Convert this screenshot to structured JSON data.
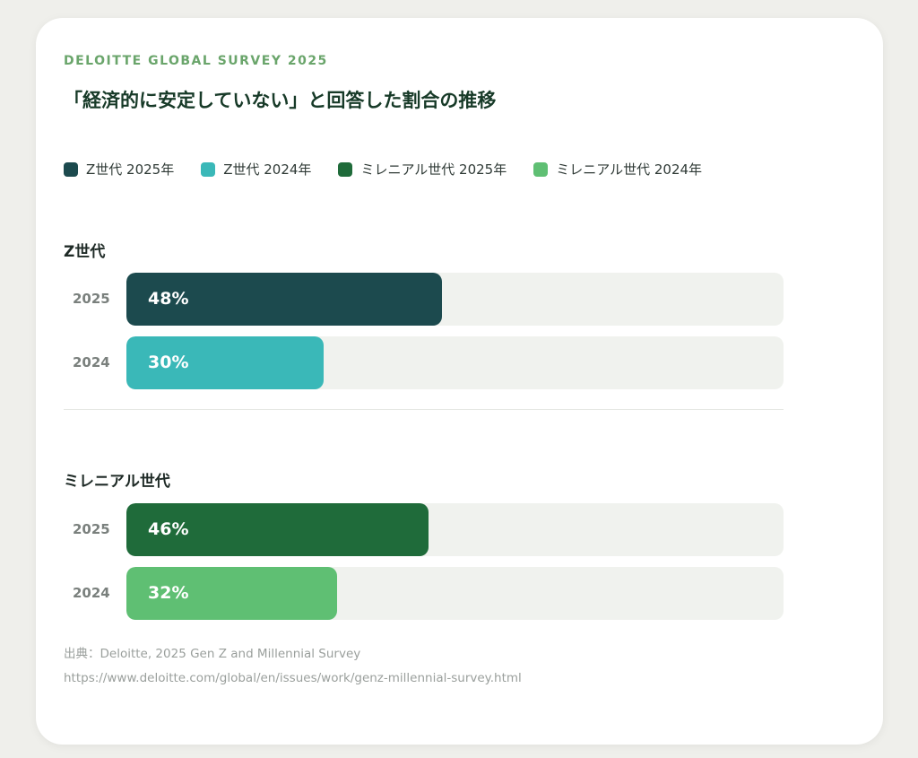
{
  "header": {
    "eyebrow": "DELOITTE GLOBAL SURVEY 2025",
    "title": "「経済的に安定していない」と回答した割合の推移"
  },
  "legend": [
    {
      "label": "Z世代 2025年",
      "color": "#1c4a4e"
    },
    {
      "label": "Z世代 2024年",
      "color": "#3ab8b8"
    },
    {
      "label": "ミレニアル世代 2025年",
      "color": "#1f6b3a"
    },
    {
      "label": "ミレニアル世代 2024年",
      "color": "#5fbf73"
    }
  ],
  "chart_data": {
    "type": "bar",
    "orientation": "horizontal",
    "title": "「経済的に安定していない」と回答した割合の推移",
    "xlim": [
      0,
      100
    ],
    "unit": "%",
    "groups": [
      {
        "name": "Z世代",
        "bars": [
          {
            "year": "2025",
            "value": 48,
            "label": "48%",
            "color": "#1c4a4e"
          },
          {
            "year": "2024",
            "value": 30,
            "label": "30%",
            "color": "#3ab8b8"
          }
        ]
      },
      {
        "name": "ミレニアル世代",
        "bars": [
          {
            "year": "2025",
            "value": 46,
            "label": "46%",
            "color": "#1f6b3a"
          },
          {
            "year": "2024",
            "value": 32,
            "label": "32%",
            "color": "#5fbf73"
          }
        ]
      }
    ]
  },
  "source": {
    "line1": "出典：Deloitte, 2025 Gen Z and Millennial Survey",
    "line2": "https://www.deloitte.com/global/en/issues/work/genz-millennial-survey.html"
  }
}
